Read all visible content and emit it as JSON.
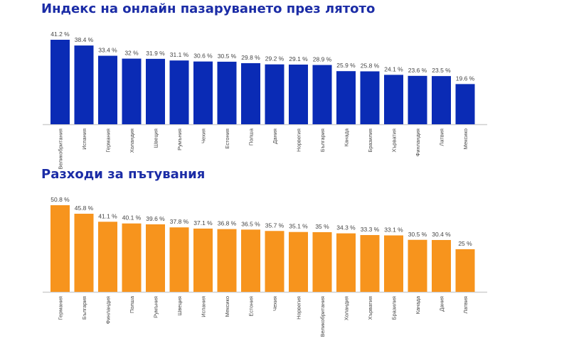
{
  "chart_data": [
    {
      "type": "bar",
      "title": "Индекс на онлайн пазаруването през лятото",
      "categories": [
        "Великобритания",
        "Испания",
        "Германия",
        "Холандия",
        "Швеция",
        "Румъния",
        "Чехия",
        "Естония",
        "Полша",
        "Дания",
        "Норвегия",
        "България",
        "Канада",
        "Бразилия",
        "Хърватия",
        "Финландия",
        "Латвия",
        "Мексико"
      ],
      "values": [
        41.2,
        38.4,
        33.4,
        32,
        31.9,
        31.1,
        30.6,
        30.5,
        29.8,
        29.2,
        29.1,
        28.9,
        25.9,
        25.8,
        24.1,
        23.6,
        23.5,
        19.6
      ],
      "labels": [
        "41.2 %",
        "38.4 %",
        "33.4 %",
        "32 %",
        "31.9 %",
        "31.1 %",
        "30.6 %",
        "30.5 %",
        "29.8 %",
        "29.2 %",
        "29.1 %",
        "28.9 %",
        "25.9 %",
        "25.8 %",
        "24.1 %",
        "23.6 %",
        "23.5 %",
        "19.6 %"
      ],
      "color": "#0a2bb5",
      "ylim": [
        0,
        41.2
      ],
      "grid": false
    },
    {
      "type": "bar",
      "title": "Разходи за пътувания",
      "categories": [
        "Германия",
        "България",
        "Финландия",
        "Полша",
        "Румъния",
        "Швеция",
        "Испания",
        "Мексико",
        "Естония",
        "Чехия",
        "Норвегия",
        "Великобритания",
        "Холандия",
        "Хърватия",
        "Бразилия",
        "Канада",
        "Дания",
        "Латвия"
      ],
      "values": [
        50.8,
        45.8,
        41.1,
        40.1,
        39.6,
        37.8,
        37.1,
        36.8,
        36.5,
        35.7,
        35.1,
        35,
        34.3,
        33.3,
        33.1,
        30.5,
        30.4,
        25
      ],
      "labels": [
        "50.8 %",
        "45.8 %",
        "41.1 %",
        "40.1 %",
        "39.6 %",
        "37.8 %",
        "37.1 %",
        "36.8 %",
        "36.5 %",
        "35.7 %",
        "35.1 %",
        "35 %",
        "34.3 %",
        "33.3 %",
        "33.1 %",
        "30.5 %",
        "30.4 %",
        "25 %"
      ],
      "color": "#f7941d",
      "ylim": [
        0,
        50.8
      ],
      "grid": false
    }
  ]
}
